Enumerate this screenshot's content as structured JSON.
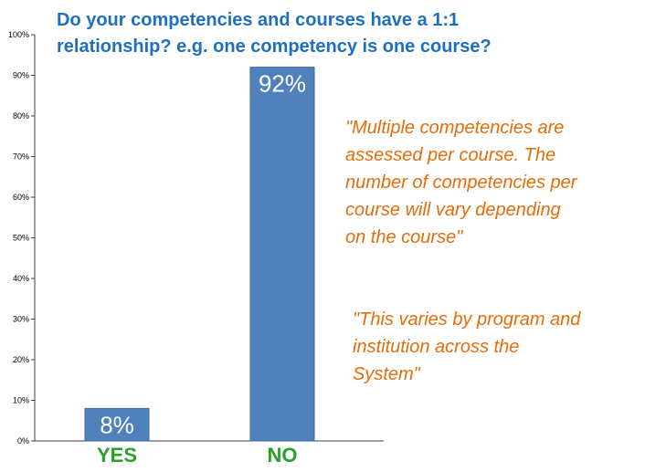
{
  "colors": {
    "title": "#1f6fc1",
    "bar": "#4f81bd",
    "bar_stroke": "#3c6aa0",
    "category_label": "#2aa02a",
    "annotation": "#e46c0a",
    "axis": "#404040",
    "data_label": "#ffffff"
  },
  "chart_data": {
    "type": "bar",
    "title": "Do your competencies and courses have a 1:1\nrelationship? e.g. one competency is one course?",
    "categories": [
      "YES",
      "NO"
    ],
    "values": [
      8,
      92
    ],
    "data_labels": [
      "8%",
      "92%"
    ],
    "y_ticks": [
      "0%",
      "10%",
      "20%",
      "30%",
      "40%",
      "50%",
      "60%",
      "70%",
      "80%",
      "90%",
      "100%"
    ],
    "ylim": [
      0,
      100
    ],
    "grid": false,
    "annotations": [
      "\"Multiple competencies are\nassessed per course. The\nnumber of competencies per\ncourse will vary depending\non the course\"",
      "\"This varies by program and\ninstitution across the\nSystem\""
    ]
  }
}
